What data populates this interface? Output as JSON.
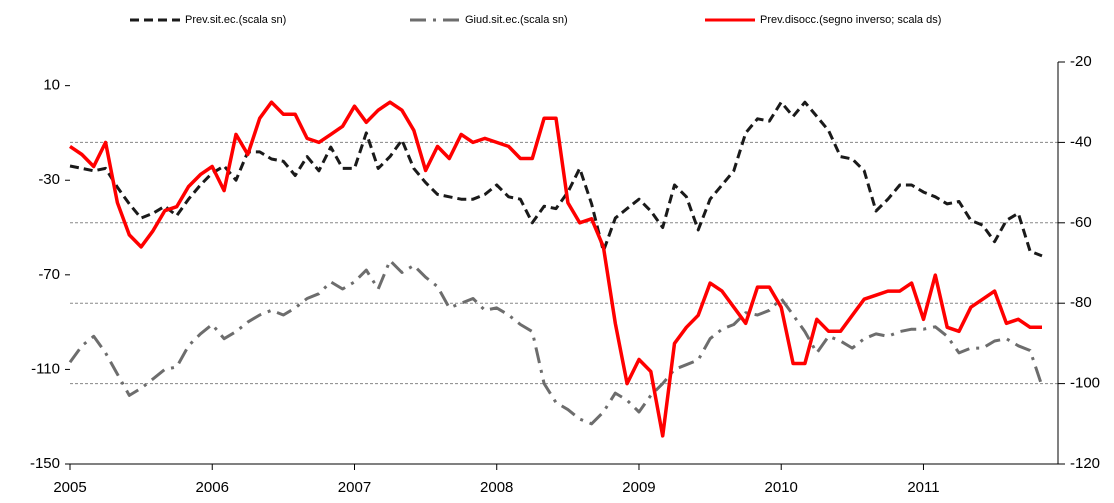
{
  "chart_data": {
    "type": "line",
    "categories": [
      "2005",
      null,
      null,
      null,
      null,
      null,
      null,
      null,
      null,
      null,
      null,
      null,
      "2006",
      null,
      null,
      null,
      null,
      null,
      null,
      null,
      null,
      null,
      null,
      null,
      "2007",
      null,
      null,
      null,
      null,
      null,
      null,
      null,
      null,
      null,
      null,
      null,
      "2008",
      null,
      null,
      null,
      null,
      null,
      null,
      null,
      null,
      null,
      null,
      null,
      "2009",
      null,
      null,
      null,
      null,
      null,
      null,
      null,
      null,
      null,
      null,
      null,
      "2010",
      null,
      null,
      null,
      null,
      null,
      null,
      null,
      null,
      null,
      null,
      null,
      "2011",
      null,
      null,
      null,
      null,
      null,
      null,
      null,
      null,
      null,
      null
    ],
    "series": [
      {
        "name": "Prev.sit.ec.(scala sn)",
        "color": "#1a1a1a",
        "dash": "dashed",
        "axis": "y",
        "values": [
          -24,
          -25,
          -26,
          -25,
          -33,
          -40,
          -46,
          -44,
          -41,
          -45,
          -38,
          -32,
          -27,
          -24,
          -30,
          -18,
          -18,
          -21,
          -22,
          -28,
          -20,
          -26,
          -16,
          -25,
          -25,
          -10,
          -25,
          -20,
          -13,
          -25,
          -31,
          -36,
          -37,
          -38,
          -38,
          -36,
          -32,
          -37,
          -38,
          -48,
          -41,
          -42,
          -35,
          -25,
          -40,
          -60,
          -46,
          -42,
          -38,
          -43,
          -50,
          -32,
          -37,
          -51,
          -38,
          -32,
          -26,
          -10,
          -4,
          -5,
          3,
          -3,
          3,
          -3,
          -9,
          -20,
          -21,
          -26,
          -43,
          -38,
          -32,
          -32,
          -35,
          -37,
          -40,
          -39,
          -47,
          -49,
          -56,
          -47,
          -44,
          -60,
          -62
        ]
      },
      {
        "name": "Giud.sit.ec.(scala sn)",
        "color": "#6d6d6d",
        "dash": "dashdot",
        "axis": "y",
        "values": [
          -107,
          -100,
          -96,
          -103,
          -112,
          -121,
          -118,
          -114,
          -110,
          -109,
          -100,
          -95,
          -91,
          -97,
          -94,
          -90,
          -87,
          -85,
          -87,
          -84,
          -80,
          -78,
          -73,
          -76,
          -73,
          -68,
          -76,
          -64,
          -69,
          -66,
          -71,
          -75,
          -84,
          -82,
          -80,
          -85,
          -84,
          -87,
          -91,
          -94,
          -116,
          -124,
          -127,
          -131,
          -133,
          -128,
          -120,
          -123,
          -128,
          -121,
          -116,
          -110,
          -108,
          -106,
          -97,
          -93,
          -91,
          -86,
          -87,
          -85,
          -80,
          -87,
          -94,
          -103,
          -96,
          -98,
          -101,
          -97,
          -95,
          -96,
          -94,
          -93,
          -93,
          -92,
          -96,
          -103,
          -101,
          -101,
          -98,
          -97,
          -100,
          -102,
          -117
        ]
      },
      {
        "name": "Prev.disocc.(segno inverso; scala ds)",
        "color": "#ff0000",
        "dash": "solid",
        "axis": "y2",
        "values": [
          -41,
          -43,
          -46,
          -40,
          -55,
          -63,
          -66,
          -62,
          -57,
          -56,
          -51,
          -48,
          -46,
          -52,
          -38,
          -43,
          -34,
          -30,
          -33,
          -33,
          -39,
          -40,
          -38,
          -36,
          -31,
          -35,
          -32,
          -30,
          -32,
          -37,
          -47,
          -41,
          -44,
          -38,
          -40,
          -39,
          -40,
          -41,
          -44,
          -44,
          -34,
          -34,
          -55,
          -60,
          -59,
          -66,
          -85,
          -100,
          -94,
          -97,
          -113,
          -90,
          -86,
          -83,
          -75,
          -77,
          -81,
          -85,
          -76,
          -76,
          -81,
          -95,
          -95,
          -84,
          -87,
          -87,
          -83,
          -79,
          -78,
          -77,
          -77,
          -75,
          -84,
          -73,
          -86,
          -87,
          -81,
          -79,
          -77,
          -85,
          -84,
          -86,
          -86
        ]
      }
    ],
    "ylim": [
      -150,
      20
    ],
    "yticks": [
      -150,
      -110,
      -70,
      -30,
      10
    ],
    "y2lim": [
      -120,
      -20
    ],
    "y2ticks": [
      -120,
      -100,
      -80,
      -60,
      -40,
      -20
    ],
    "grid": true,
    "legend": "top"
  }
}
